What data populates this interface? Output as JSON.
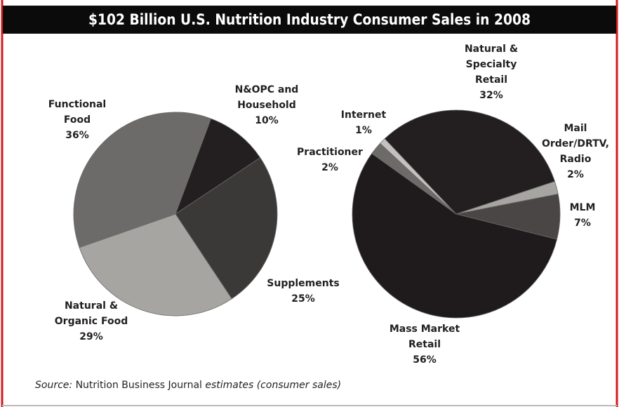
{
  "title": "$102 Billion U.S. Nutrition Industry Consumer Sales in 2008",
  "chart_data": [
    {
      "type": "pie",
      "categories": [
        "N&OPC and Household",
        "Supplements",
        "Natural & Organic Food",
        "Functional Food"
      ],
      "values": [
        10,
        25,
        29,
        36
      ],
      "value_labels": [
        "10%",
        "25%",
        "29%",
        "36%"
      ],
      "colors": [
        "#231f20",
        "#3b3838",
        "#a7a5a2",
        "#6d6b6a"
      ]
    },
    {
      "type": "pie",
      "categories": [
        "Natural & Specialty Retail",
        "Mail Order/DRTV, Radio",
        "MLM",
        "Mass Market Retail",
        "Practitioner",
        "Internet"
      ],
      "values": [
        32,
        2,
        7,
        56,
        2,
        1
      ],
      "value_labels": [
        "32%",
        "2%",
        "7%",
        "56%",
        "2%",
        "1%"
      ],
      "colors": [
        "#231f20",
        "#a7a5a2",
        "#4a4646",
        "#1f1b1c",
        "#6d6b6a",
        "#c4c2bf"
      ]
    }
  ],
  "source": {
    "label": "Source:",
    "publisher": "Nutrition Business Journal",
    "note": "estimates (consumer sales)"
  }
}
